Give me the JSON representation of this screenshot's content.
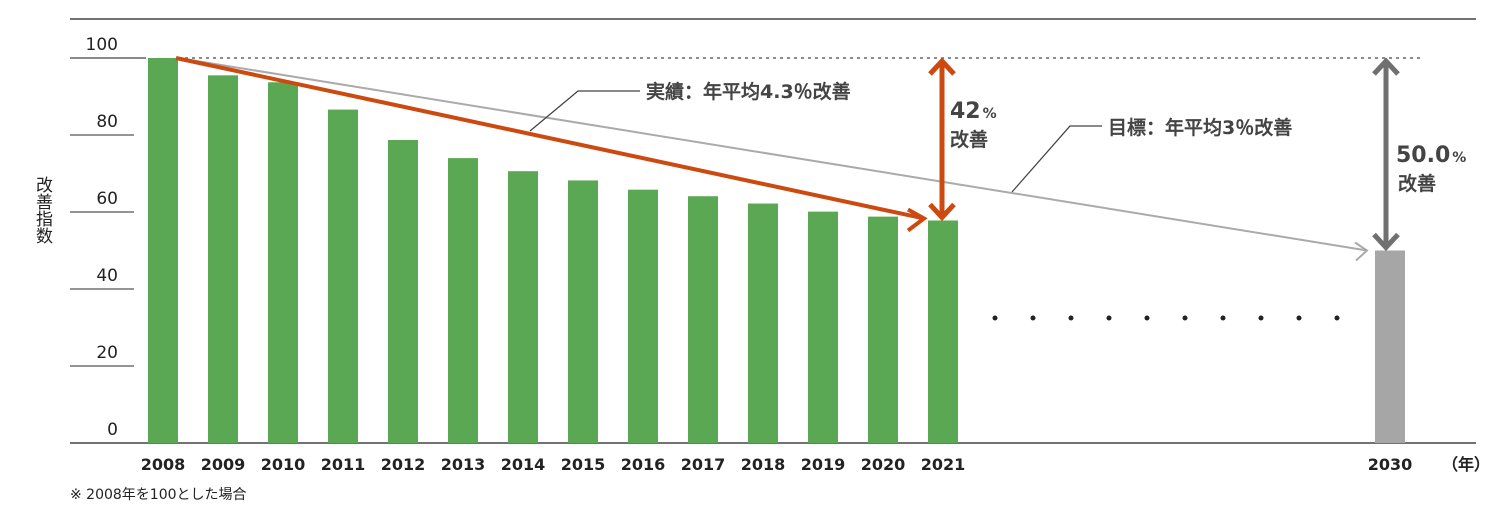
{
  "chart_data": {
    "type": "bar",
    "ylabel": "改善指数",
    "x_unit": "（年）",
    "note": "※ 2008年を100とした場合",
    "yticks": [
      "0",
      "20",
      "40",
      "60",
      "80",
      "100"
    ],
    "ylim": [
      0,
      100
    ],
    "categories": [
      "2008",
      "2009",
      "2010",
      "2011",
      "2012",
      "2013",
      "2014",
      "2015",
      "2016",
      "2017",
      "2018",
      "2019",
      "2020",
      "2021",
      "2030"
    ],
    "values": [
      100,
      95.5,
      93.7,
      86.6,
      78.7,
      74,
      70.6,
      68.2,
      65.8,
      64.1,
      62.2,
      60.1,
      58.8,
      57.8,
      50
    ],
    "bar_colors": {
      "actual": "#5ba854",
      "target": "#a6a6a6"
    },
    "annotations": {
      "actual_label": "実績：年平均4.3％改善",
      "target_label": "目標：年平均3％改善",
      "actual_improvement_value": "42",
      "actual_improvement_unit": "%",
      "actual_improvement_text": "改善",
      "target_improvement_value": "50.0",
      "target_improvement_unit": "%",
      "target_improvement_text": "改善"
    },
    "trend_colors": {
      "actual": "#cc4a10",
      "target": "#aaaaaa",
      "arrow_target": "#707070"
    },
    "grid": false
  }
}
